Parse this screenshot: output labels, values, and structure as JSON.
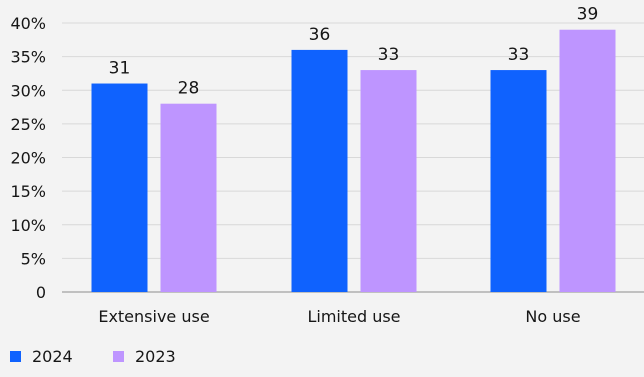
{
  "chart_data": {
    "type": "bar",
    "categories": [
      "Extensive use",
      "Limited use",
      "No use"
    ],
    "series": [
      {
        "name": "2024",
        "values": [
          31,
          36,
          33
        ],
        "color": "#0f62fe"
      },
      {
        "name": "2023",
        "values": [
          28,
          33,
          39
        ],
        "color": "#be95ff"
      }
    ],
    "data_labels": [
      [
        "31",
        "36",
        "33"
      ],
      [
        "28",
        "33",
        "39"
      ]
    ],
    "y_ticks": [
      0,
      5,
      10,
      15,
      20,
      25,
      30,
      35,
      40
    ],
    "y_tick_labels": [
      "0",
      "5%",
      "10%",
      "15%",
      "20%",
      "25%",
      "30%",
      "35%",
      "40%"
    ],
    "ylim": [
      0,
      40
    ],
    "grid": true,
    "legend_position": "bottom-left",
    "title": "",
    "xlabel": "",
    "ylabel": ""
  }
}
